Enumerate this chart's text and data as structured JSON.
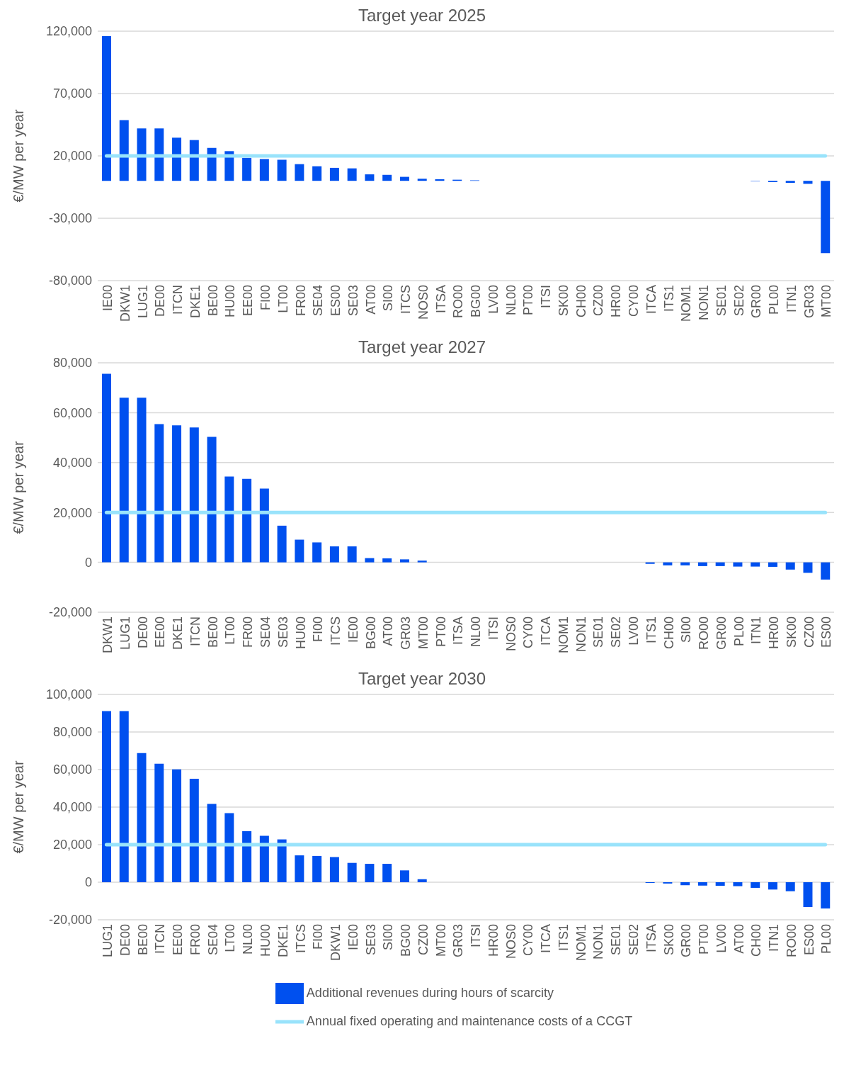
{
  "chart_data": [
    {
      "type": "bar",
      "title": "Target year 2025",
      "ylabel": "€/MW per year",
      "grid": "y",
      "legend": false,
      "categories": [
        "IE00",
        "DKW1",
        "LUG1",
        "DE00",
        "ITCN",
        "DKE1",
        "BE00",
        "HU00",
        "EE00",
        "FI00",
        "LT00",
        "FR00",
        "SE04",
        "ES00",
        "SE03",
        "AT00",
        "SI00",
        "ITCS",
        "NOS0",
        "ITSA",
        "RO00",
        "BG00",
        "LV00",
        "NL00",
        "PT00",
        "ITSI",
        "SK00",
        "CH00",
        "CZ00",
        "HR00",
        "CY00",
        "ITCA",
        "ITS1",
        "NOM1",
        "NON1",
        "SE01",
        "SE02",
        "GR00",
        "PL00",
        "ITN1",
        "GR03",
        "MT00"
      ],
      "ylim": [
        -80000,
        120000
      ],
      "yticks": [
        {
          "value": -80000,
          "label": "-80,000"
        },
        {
          "value": -30000,
          "label": "-30,000"
        },
        {
          "value": 20000,
          "label": "20,000"
        },
        {
          "value": 70000,
          "label": "70,000"
        },
        {
          "value": 120000,
          "label": "120,000"
        }
      ],
      "series": [
        {
          "color": "#0050ef",
          "values": [
            116000,
            48700,
            42000,
            42000,
            34600,
            32700,
            26400,
            23800,
            18400,
            17500,
            16900,
            13400,
            11700,
            10400,
            10000,
            5200,
            4800,
            3200,
            1700,
            1300,
            900,
            400,
            0,
            0,
            0,
            0,
            0,
            0,
            0,
            0,
            0,
            0,
            0,
            0,
            0,
            0,
            0,
            -300,
            -1000,
            -1600,
            -2400,
            -58000
          ]
        },
        {
          "type": "line",
          "color": "#99e3fb",
          "values": [
            20000,
            20000,
            20000,
            20000,
            20000,
            20000,
            20000,
            20000,
            20000,
            20000,
            20000,
            20000,
            20000,
            20000,
            20000,
            20000,
            20000,
            20000,
            20000,
            20000,
            20000,
            20000,
            20000,
            20000,
            20000,
            20000,
            20000,
            20000,
            20000,
            20000,
            20000,
            20000,
            20000,
            20000,
            20000,
            20000,
            20000,
            20000,
            20000,
            20000,
            20000,
            20000
          ]
        }
      ]
    },
    {
      "type": "bar",
      "title": "Target year 2027",
      "ylabel": "€/MW per year",
      "grid": "y",
      "legend": false,
      "categories": [
        "DKW1",
        "LUG1",
        "DE00",
        "EE00",
        "DKE1",
        "ITCN",
        "BE00",
        "LT00",
        "FR00",
        "SE04",
        "SE03",
        "HU00",
        "FI00",
        "ITCS",
        "IE00",
        "BG00",
        "AT00",
        "GR03",
        "MT00",
        "PT00",
        "ITSA",
        "NL00",
        "ITSI",
        "NOS0",
        "CY00",
        "ITCA",
        "NOM1",
        "NON1",
        "SE01",
        "SE02",
        "LV00",
        "ITS1",
        "CH00",
        "SI00",
        "RO00",
        "GR00",
        "PL00",
        "ITN1",
        "HR00",
        "SK00",
        "CZ00",
        "ES00"
      ],
      "ylim": [
        -20000,
        80000
      ],
      "yticks": [
        {
          "value": -20000,
          "label": "-20,000"
        },
        0,
        {
          "value": 20000,
          "label": "20,000"
        },
        {
          "value": 40000,
          "label": "40,000"
        },
        {
          "value": 60000,
          "label": "60,000"
        },
        {
          "value": 80000,
          "label": "80,000"
        }
      ],
      "series": [
        {
          "color": "#0050ef",
          "values": [
            75600,
            66000,
            66000,
            55400,
            54900,
            54100,
            50300,
            34400,
            33500,
            29600,
            14700,
            9100,
            8000,
            6400,
            6400,
            1700,
            1600,
            1200,
            700,
            0,
            0,
            0,
            0,
            0,
            0,
            0,
            0,
            0,
            0,
            0,
            0,
            -600,
            -1200,
            -1200,
            -1500,
            -1500,
            -1700,
            -1700,
            -1800,
            -2900,
            -4200,
            -6900
          ]
        },
        {
          "type": "line",
          "color": "#99e3fb",
          "values": [
            20000,
            20000,
            20000,
            20000,
            20000,
            20000,
            20000,
            20000,
            20000,
            20000,
            20000,
            20000,
            20000,
            20000,
            20000,
            20000,
            20000,
            20000,
            20000,
            20000,
            20000,
            20000,
            20000,
            20000,
            20000,
            20000,
            20000,
            20000,
            20000,
            20000,
            20000,
            20000,
            20000,
            20000,
            20000,
            20000,
            20000,
            20000,
            20000,
            20000,
            20000,
            20000
          ]
        }
      ]
    },
    {
      "type": "bar",
      "title": "Target year 2030",
      "ylabel": "€/MW per year",
      "grid": "y",
      "legend": "bottom",
      "categories": [
        "LUG1",
        "DE00",
        "BE00",
        "ITCN",
        "EE00",
        "FR00",
        "SE04",
        "LT00",
        "NL00",
        "HU00",
        "DKE1",
        "ITCS",
        "FI00",
        "DKW1",
        "IE00",
        "SE03",
        "SI00",
        "BG00",
        "CZ00",
        "MT00",
        "GR03",
        "ITSI",
        "HR00",
        "NOS0",
        "CY00",
        "ITCA",
        "ITS1",
        "NOM1",
        "NON1",
        "SE01",
        "SE02",
        "ITSA",
        "SK00",
        "GR00",
        "PT00",
        "LV00",
        "AT00",
        "CH00",
        "ITN1",
        "RO00",
        "ES00",
        "PL00"
      ],
      "ylim": [
        -20000,
        100000
      ],
      "yticks": [
        {
          "value": -20000,
          "label": "-20,000"
        },
        0,
        {
          "value": 20000,
          "label": "20,000"
        },
        {
          "value": 40000,
          "label": "40,000"
        },
        {
          "value": 60000,
          "label": "60,000"
        },
        {
          "value": 80000,
          "label": "80,000"
        },
        {
          "value": 100000,
          "label": "100,000"
        }
      ],
      "series": [
        {
          "name": "Additional revenues during hours of scarcity",
          "color": "#0050ef",
          "values": [
            91100,
            91100,
            68800,
            63100,
            60100,
            55100,
            41700,
            36800,
            27200,
            24700,
            22800,
            14300,
            14000,
            13400,
            10300,
            9800,
            9800,
            6300,
            1600,
            0,
            0,
            0,
            0,
            0,
            0,
            0,
            0,
            0,
            0,
            0,
            0,
            -400,
            -700,
            -1600,
            -1800,
            -1900,
            -2100,
            -3000,
            -3900,
            -4800,
            -13200,
            -14000
          ]
        },
        {
          "type": "line",
          "name": "Annual fixed operating and maintenance costs of a CCGT",
          "color": "#99e3fb",
          "values": [
            20000,
            20000,
            20000,
            20000,
            20000,
            20000,
            20000,
            20000,
            20000,
            20000,
            20000,
            20000,
            20000,
            20000,
            20000,
            20000,
            20000,
            20000,
            20000,
            20000,
            20000,
            20000,
            20000,
            20000,
            20000,
            20000,
            20000,
            20000,
            20000,
            20000,
            20000,
            20000,
            20000,
            20000,
            20000,
            20000,
            20000,
            20000,
            20000,
            20000,
            20000,
            20000
          ]
        }
      ]
    }
  ]
}
